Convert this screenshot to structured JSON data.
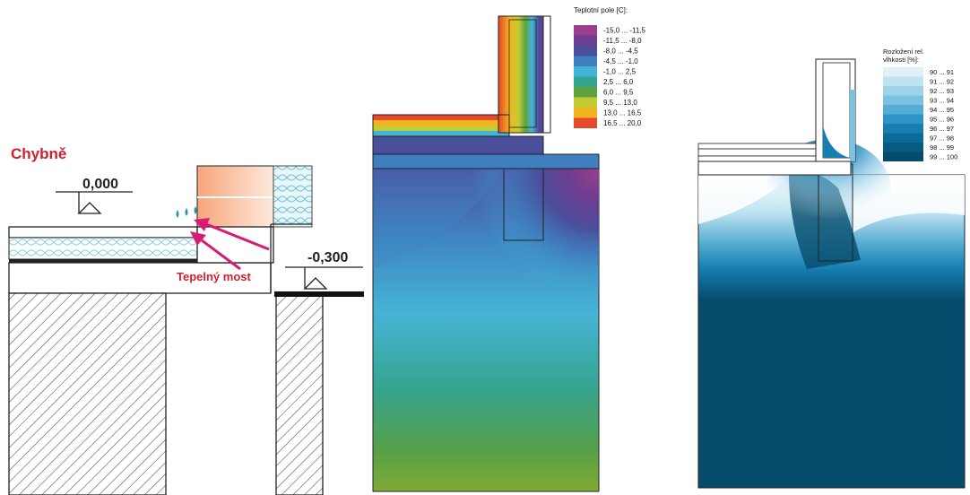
{
  "detail": {
    "status_label": "Chybně",
    "level_upper": "0,000",
    "level_lower": "-0,300",
    "bridge_label": "Tepelný most"
  },
  "temperature": {
    "legend_title": "Teplotní pole [C]:",
    "legend": [
      {
        "label": "-15,0 ... -11,5",
        "color": "#9b3f8c"
      },
      {
        "label": "-11,5 ... -8,0",
        "color": "#6c3d90"
      },
      {
        "label": "-8,0 ... -4,5",
        "color": "#4a4f9c"
      },
      {
        "label": "-4,5 ... -1,0",
        "color": "#3f7fbf"
      },
      {
        "label": "-1,0 ... 2,5",
        "color": "#43b3d6"
      },
      {
        "label": "2,5 ... 6,0",
        "color": "#33a58f"
      },
      {
        "label": "6,0 ... 9,5",
        "color": "#5fa23d"
      },
      {
        "label": "9,5 ... 13,0",
        "color": "#c4cc33"
      },
      {
        "label": "13,0 ... 16,5",
        "color": "#f2b51e"
      },
      {
        "label": "16,5 ... 20,0",
        "color": "#e8482c"
      }
    ]
  },
  "humidity": {
    "legend_title_line1": "Rozložení rel.",
    "legend_title_line2": "vlhkosti [%]:",
    "legend": [
      {
        "label": "90 ... 91",
        "color": "#dff0f7"
      },
      {
        "label": "91 ... 92",
        "color": "#bfe3f1"
      },
      {
        "label": "92 ... 93",
        "color": "#9ed3ea"
      },
      {
        "label": "93 ... 94",
        "color": "#7cc1e0"
      },
      {
        "label": "94 ... 95",
        "color": "#55acd4"
      },
      {
        "label": "95 ... 96",
        "color": "#2f94c4"
      },
      {
        "label": "96 ... 97",
        "color": "#167eb0"
      },
      {
        "label": "97 ... 98",
        "color": "#0c6b98"
      },
      {
        "label": "98 ... 99",
        "color": "#075a80"
      },
      {
        "label": "99 ... 100",
        "color": "#054b6b"
      }
    ]
  }
}
